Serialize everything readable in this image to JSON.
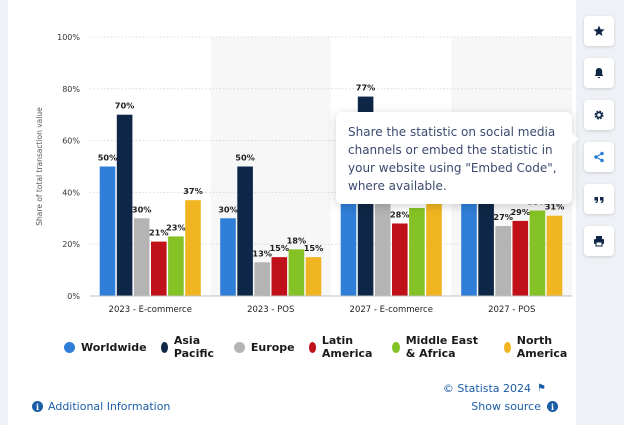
{
  "chart_data": {
    "type": "bar",
    "categories": [
      "2023 - E-commerce",
      "2023 - POS",
      "2027 - E-commerce",
      "2027 - POS"
    ],
    "series": [
      {
        "name": "Worldwide",
        "color": "#2f7ed8",
        "values": [
          50,
          30,
          67,
          50
        ]
      },
      {
        "name": "Asia Pacific",
        "color": "#0e2746",
        "values": [
          70,
          50,
          77,
          66
        ]
      },
      {
        "name": "Europe",
        "color": "#b4b4b4",
        "values": [
          30,
          13,
          40,
          27
        ]
      },
      {
        "name": "Latin America",
        "color": "#c0101a",
        "values": [
          21,
          15,
          28,
          29
        ]
      },
      {
        "name": "Middle East & Africa",
        "color": "#85c225",
        "values": [
          23,
          18,
          34,
          33
        ]
      },
      {
        "name": "North America",
        "color": "#f1b521",
        "values": [
          37,
          15,
          37,
          31
        ]
      }
    ],
    "value_labels": [
      [
        "50%",
        "70%",
        "30%",
        "21%",
        "23%",
        "37%"
      ],
      [
        "30%",
        "50%",
        "13%",
        "15%",
        "18%",
        "15%"
      ],
      [
        "",
        "77%",
        "",
        "28%",
        "",
        ""
      ],
      [
        "",
        "",
        "27%",
        "29%",
        "33%",
        "31%"
      ]
    ],
    "xlabel": "",
    "ylabel": "Share of total transaction value",
    "ylim": [
      0,
      100
    ],
    "yticks": [
      "0%",
      "20%",
      "40%",
      "60%",
      "80%",
      "100%"
    ],
    "grid": true,
    "legend_position": "bottom"
  },
  "tooltip": {
    "text": "Share the statistic on social media channels or embed the statistic in your website using \"Embed Code\", where available."
  },
  "footer": {
    "additional_info": "Additional Information",
    "copyright": "© Statista 2024",
    "show_source": "Show source"
  },
  "sidebar": {
    "icons": [
      "star-icon",
      "bell-icon",
      "gear-icon",
      "share-icon",
      "quote-icon",
      "print-icon"
    ]
  }
}
